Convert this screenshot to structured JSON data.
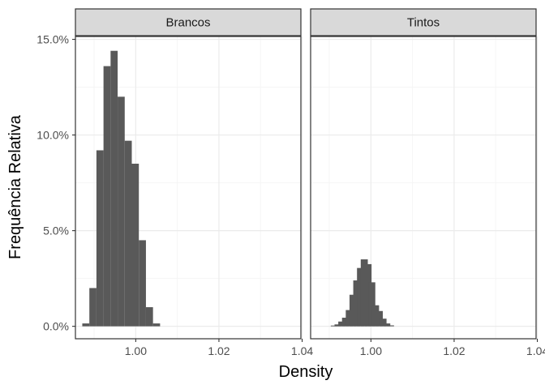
{
  "chart_data": {
    "type": "histogram",
    "xlabel": "Density",
    "ylabel": "Frequência Relativa",
    "x_ticks": [
      1.0,
      1.02,
      1.04
    ],
    "x_tick_labels": [
      "1.00",
      "1.02",
      "1.04"
    ],
    "y_ticks": [
      0,
      0.05,
      0.1,
      0.15
    ],
    "y_tick_labels": [
      "0.0%",
      "5.0%",
      "10.0%",
      "15.0%"
    ],
    "xlim": [
      0.9855,
      1.0397
    ],
    "ylim": [
      -0.0065,
      0.1515
    ],
    "bin_width": 0.0017,
    "grid": true,
    "facets": [
      {
        "label": "Brancos",
        "bins": [
          {
            "x": 0.988,
            "y": 0.0015
          },
          {
            "x": 0.9897,
            "y": 0.02
          },
          {
            "x": 0.9914,
            "y": 0.092
          },
          {
            "x": 0.9931,
            "y": 0.136
          },
          {
            "x": 0.9948,
            "y": 0.144
          },
          {
            "x": 0.9965,
            "y": 0.12
          },
          {
            "x": 0.9982,
            "y": 0.097
          },
          {
            "x": 0.9999,
            "y": 0.085
          },
          {
            "x": 1.0016,
            "y": 0.045
          },
          {
            "x": 1.0033,
            "y": 0.01
          },
          {
            "x": 1.005,
            "y": 0.0015
          }
        ]
      },
      {
        "label": "Tintos",
        "bins": [
          {
            "x": 0.9912,
            "y": 0.0004
          },
          {
            "x": 0.9921,
            "y": 0.001
          },
          {
            "x": 0.993,
            "y": 0.0025
          },
          {
            "x": 0.9939,
            "y": 0.0045
          },
          {
            "x": 0.9948,
            "y": 0.0085
          },
          {
            "x": 0.9957,
            "y": 0.0165
          },
          {
            "x": 0.9966,
            "y": 0.024
          },
          {
            "x": 0.9975,
            "y": 0.0305
          },
          {
            "x": 0.9984,
            "y": 0.035
          },
          {
            "x": 0.9993,
            "y": 0.0325
          },
          {
            "x": 1.0002,
            "y": 0.023
          },
          {
            "x": 1.0011,
            "y": 0.011
          },
          {
            "x": 1.002,
            "y": 0.008
          },
          {
            "x": 1.0029,
            "y": 0.004
          },
          {
            "x": 1.0038,
            "y": 0.0015
          },
          {
            "x": 1.0047,
            "y": 0.0005
          }
        ]
      }
    ],
    "colors": {
      "bar": "#595959",
      "strip_fill": "#d9d9d9",
      "panel_border": "#333333",
      "grid_major": "#ebebeb",
      "grid_minor": "#f5f5f5",
      "tick_text": "#4d4d4d"
    }
  }
}
